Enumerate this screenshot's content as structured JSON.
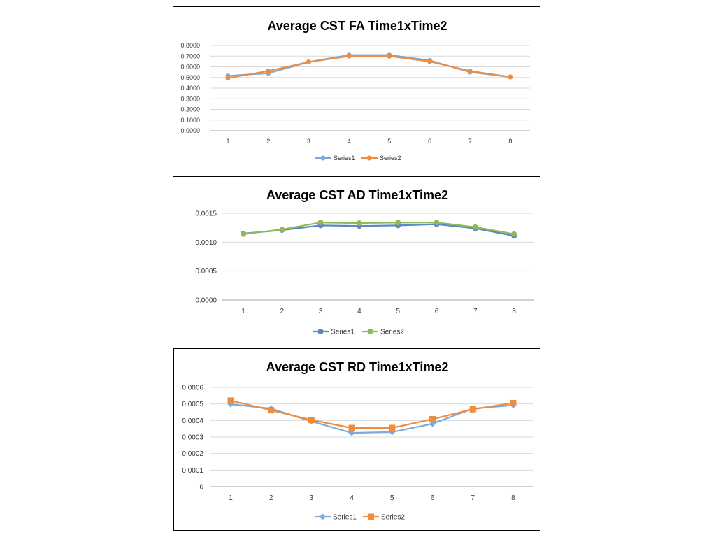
{
  "chart_data": [
    {
      "type": "line",
      "title": "Average CST FA Time1xTime2",
      "xlabel": "",
      "ylabel": "",
      "categories": [
        "1",
        "2",
        "3",
        "4",
        "5",
        "6",
        "7",
        "8"
      ],
      "ylim": [
        0,
        0.8
      ],
      "yticks": [
        "0.0000",
        "0.1000",
        "0.2000",
        "0.3000",
        "0.4000",
        "0.5000",
        "0.6000",
        "0.7000",
        "0.8000"
      ],
      "grid": true,
      "legend": "bottom",
      "series": [
        {
          "name": "Series1",
          "color": "#7ea9d8",
          "marker": "circle",
          "values": [
            0.515,
            0.54,
            0.645,
            0.71,
            0.71,
            0.66,
            0.55,
            0.505
          ]
        },
        {
          "name": "Series2",
          "color": "#ee8c3f",
          "marker": "circle",
          "values": [
            0.495,
            0.56,
            0.645,
            0.7,
            0.7,
            0.65,
            0.56,
            0.505
          ]
        }
      ]
    },
    {
      "type": "line",
      "title": "Average CST AD Time1xTime2",
      "xlabel": "",
      "ylabel": "",
      "categories": [
        "1",
        "2",
        "3",
        "4",
        "5",
        "6",
        "7",
        "8"
      ],
      "ylim": [
        0,
        0.0015
      ],
      "yticks": [
        "0.0000",
        "0.0005",
        "0.0010",
        "0.0015"
      ],
      "grid": true,
      "legend": "bottom",
      "series": [
        {
          "name": "Series1",
          "color": "#5a87c6",
          "marker": "circle",
          "values": [
            0.00115,
            0.00121,
            0.00129,
            0.00128,
            0.00129,
            0.00131,
            0.00124,
            0.00111
          ]
        },
        {
          "name": "Series2",
          "color": "#8fba55",
          "marker": "circle",
          "values": [
            0.00114,
            0.00122,
            0.00134,
            0.00133,
            0.00134,
            0.00134,
            0.00126,
            0.00114
          ]
        }
      ]
    },
    {
      "type": "line",
      "title": "Average CST RD  Time1xTime2",
      "xlabel": "",
      "ylabel": "",
      "categories": [
        "1",
        "2",
        "3",
        "4",
        "5",
        "6",
        "7",
        "8"
      ],
      "ylim": [
        0,
        0.0006
      ],
      "yticks": [
        "0",
        "0.0001",
        "0.0002",
        "0.0003",
        "0.0004",
        "0.0005",
        "0.0006"
      ],
      "grid": true,
      "legend": "bottom",
      "series": [
        {
          "name": "Series1",
          "color": "#7ea9d8",
          "marker": "diamond",
          "values": [
            0.000498,
            0.000472,
            0.000395,
            0.000325,
            0.00033,
            0.00038,
            0.000472,
            0.000492
          ]
        },
        {
          "name": "Series2",
          "color": "#ee8c3f",
          "marker": "square",
          "values": [
            0.00052,
            0.000462,
            0.000403,
            0.000355,
            0.000355,
            0.000408,
            0.000468,
            0.000505
          ]
        }
      ]
    }
  ]
}
